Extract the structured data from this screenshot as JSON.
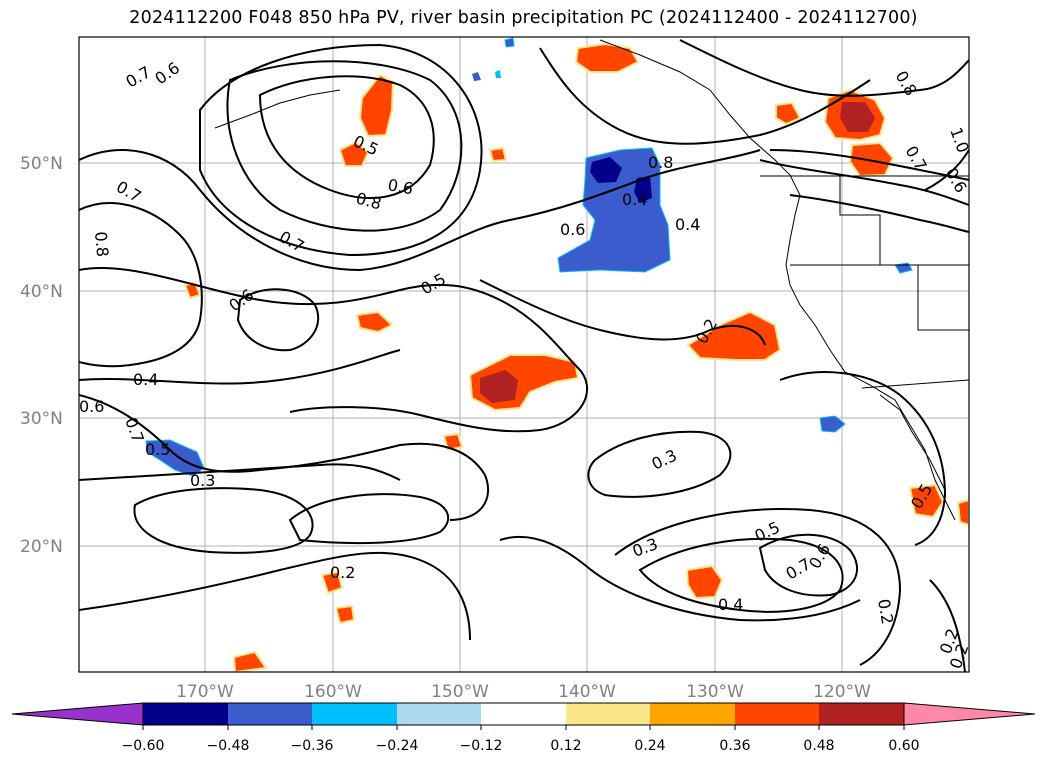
{
  "title": "2024112200 F048 850 hPa PV, river basin precipitation PC (2024112400 - 2024112700)",
  "map": {
    "lat_labels": [
      "50°N",
      "40°N",
      "30°N",
      "20°N"
    ],
    "lon_labels": [
      "170°W",
      "160°W",
      "150°W",
      "140°W",
      "130°W",
      "120°W"
    ],
    "contour_labels": [
      "0.7",
      "0.6",
      "0.7",
      "0.8",
      "0.5",
      "0.6",
      "0.8",
      "0.7",
      "0.6",
      "0.5",
      "0.6",
      "0.8",
      "0.4",
      "0.4",
      "0.6",
      "0.7",
      "0.5",
      "0.3",
      "0.4",
      "0.2",
      "0.2",
      "0.3",
      "0.3",
      "0.5",
      "0.7",
      "0.6",
      "0.4",
      "0.2",
      "0.8",
      "1.0",
      "0.7",
      "0.6",
      "0.5",
      "0.2",
      "0.2"
    ],
    "colors": {
      "pos_low": "#fde68a",
      "pos_mid": "#ffa500",
      "pos_high": "#ff4500",
      "pos_top": "#b22222",
      "neg_low": "#add8f0",
      "neg_mid": "#00bfff",
      "neg_high": "#3a5ccc",
      "neg_top": "#00008b"
    }
  },
  "colorbar": {
    "ticks": [
      "−0.60",
      "−0.48",
      "−0.36",
      "−0.24",
      "−0.12",
      "0.12",
      "0.24",
      "0.36",
      "0.48",
      "0.60"
    ],
    "colors": [
      "#9932cc",
      "#00008b",
      "#3a5ccc",
      "#00bfff",
      "#add8f0",
      "#ffffff",
      "#fde68a",
      "#ffa500",
      "#ff4500",
      "#b22222",
      "#ff88aa"
    ]
  }
}
